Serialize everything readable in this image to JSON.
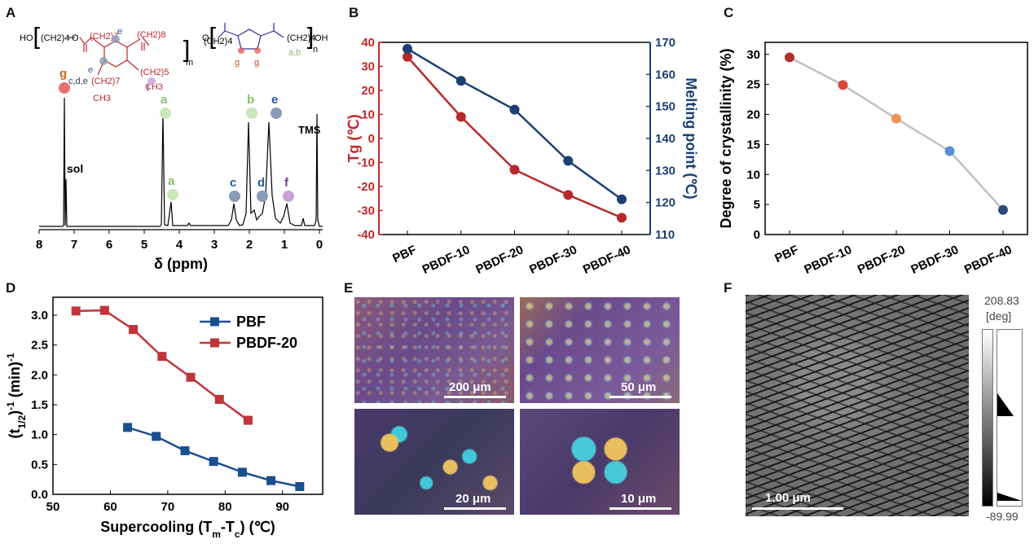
{
  "panels": {
    "A": "A",
    "B": "B",
    "C": "C",
    "D": "D",
    "E": "E",
    "F": "F"
  },
  "panelA": {
    "xlabel": "δ (ppm)",
    "xticks": [
      "8",
      "7",
      "6",
      "5",
      "4",
      "3",
      "2",
      "1",
      "0"
    ],
    "peak_labels": {
      "g": "g",
      "sol": "sol",
      "a1": "a",
      "a2": "a",
      "b": "b",
      "c": "c",
      "d": "d",
      "e": "e",
      "f": "f",
      "tms": "TMS"
    },
    "structure": {
      "ho": "HO",
      "ch2_4a": "(CH2)4",
      "o1": "O",
      "m": "m",
      "n": "n",
      "oh": "OH",
      "o2": "O",
      "ch2_4b": "(CH2)4",
      "ch2_7a": "(CH2)7",
      "ch2_7b": "(CH2)7",
      "ch2_8": "(CH2)8",
      "ch2_5": "(CH2)5",
      "ch3a": "CH3",
      "ch3b": "CH3",
      "label_cde": "c,d,e",
      "label_e1": "e",
      "label_e2": "e",
      "label_g1": "g",
      "label_g2": "g",
      "label_f": "f",
      "label_ab": "a,b"
    }
  },
  "chart_data": [
    {
      "id": "B",
      "type": "line",
      "categories": [
        "PBF",
        "PBDF-10",
        "PBDF-20",
        "PBDF-30",
        "PBDF-40"
      ],
      "series": [
        {
          "name": "Tg (℃)",
          "axis": "left",
          "color": "#b8282a",
          "values": [
            34,
            9,
            -13,
            -23.5,
            -33
          ]
        },
        {
          "name": "Melting point (℃)",
          "axis": "right",
          "color": "#1b3f73",
          "values": [
            168,
            158,
            149,
            133,
            121
          ]
        }
      ],
      "ylabel_left": "Tg (℃)",
      "ylabel_right": "Melting point (℃)",
      "ylim_left": [
        -40,
        40
      ],
      "ylim_right": [
        110,
        170
      ],
      "yticks_left": [
        "40",
        "30",
        "20",
        "10",
        "0",
        "-10",
        "-20",
        "-30",
        "-40"
      ],
      "yticks_right": [
        "170",
        "160",
        "150",
        "140",
        "130",
        "120",
        "110"
      ]
    },
    {
      "id": "C",
      "type": "line",
      "categories": [
        "PBF",
        "PBDF-10",
        "PBDF-20",
        "PBDF-30",
        "PBDF-40"
      ],
      "values": [
        29.5,
        24.9,
        19.3,
        13.9,
        4.1
      ],
      "point_colors": [
        "#b03030",
        "#d9473a",
        "#f0905a",
        "#5a8fd0",
        "#2a4a78"
      ],
      "ylabel": "Degree of crystallinity (%)",
      "ylim": [
        0,
        32
      ],
      "yticks": [
        "0",
        "5",
        "10",
        "15",
        "20",
        "25",
        "30"
      ]
    },
    {
      "id": "D",
      "type": "line",
      "series": [
        {
          "name": "PBF",
          "color": "#1a4f8f",
          "x": [
            63,
            68,
            73,
            78,
            83,
            88,
            93
          ],
          "y": [
            1.12,
            0.97,
            0.73,
            0.55,
            0.37,
            0.23,
            0.13
          ]
        },
        {
          "name": "PBDF-20",
          "color": "#c0343a",
          "x": [
            54,
            59,
            64,
            69,
            74,
            79,
            84
          ],
          "y": [
            3.07,
            3.08,
            2.76,
            2.31,
            1.96,
            1.59,
            1.24
          ]
        }
      ],
      "xlabel": "Supercooling (Tm-Tc) (℃)",
      "ylabel": "(t1/2)-1 (min)-1",
      "xlim": [
        50,
        97
      ],
      "ylim": [
        0,
        3.3
      ],
      "xticks": [
        "50",
        "60",
        "70",
        "80",
        "90"
      ],
      "yticks": [
        "0.0",
        "0.5",
        "1.0",
        "1.5",
        "2.0",
        "2.5",
        "3.0"
      ]
    }
  ],
  "panelD_labels": {
    "xlabel_main": "Supercooling (T",
    "sub_m": "m",
    "dash": "-T",
    "sub_c": "c",
    "xlabel_end": ") (℃)",
    "ylabel_t": "(t",
    "ylabel_sub": "1/2",
    "ylabel_mid": ")",
    "ylabel_sup1": "-1",
    "ylabel_min": " (min)",
    "ylabel_sup2": "-1"
  },
  "panelE": {
    "scale_bars": [
      "200 μm",
      "50 μm",
      "20 μm",
      "10 μm"
    ]
  },
  "panelF": {
    "scale_bar": "1.00 μm",
    "cbar_max": "208.83",
    "cbar_unit": "[deg]",
    "cbar_min": "-89.99"
  },
  "colors": {
    "tg": "#b8282a",
    "tm": "#1b3f73",
    "grey_line": "#c0c0c0",
    "pbf_d": "#1a4f8f",
    "pbdf20_d": "#c0343a"
  }
}
